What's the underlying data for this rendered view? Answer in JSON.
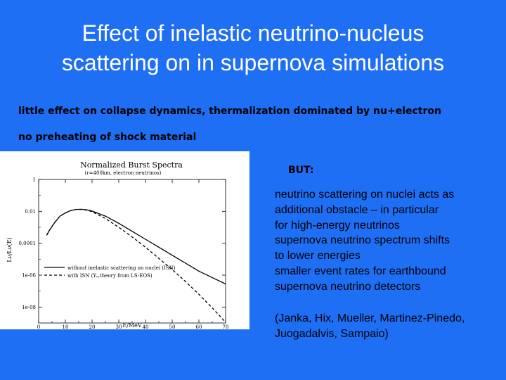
{
  "slide": {
    "title_lines": [
      "Effect of inelastic neutrino-nucleus",
      "scattering on in supernova simulations"
    ],
    "bullet1": "little effect on collapse dynamics, thermalization dominated by nu+electron",
    "bullet2": "no preheating of shock material",
    "but_label": "BUT:",
    "points": [
      "neutrino scattering on nuclei acts as",
      "additional obstacle – in particular",
      "for high-energy neutrinos",
      "supernova neutrino spectrum shifts",
      "to lower energies",
      "smaller event rates for earthbound",
      "supernova neutrino detectors"
    ],
    "refs": [
      "(Janka, Hix, Mueller, Martinez-Pinedo,",
      "Juogadalvis, Sampaio)"
    ],
    "background_color": "#1f6ff5"
  },
  "chart_data": {
    "type": "line",
    "title": "Normalized Burst Spectra",
    "subtitle": "(r=400km, electron neutrinos)",
    "xlabel": "E/MeV",
    "ylabel": "Lν/Lν(E)",
    "x_ticks": [
      0,
      10,
      20,
      30,
      40,
      50,
      60,
      70
    ],
    "y_ticks": [
      "1",
      "0.01",
      "0.0001",
      "1e-06",
      "1e-08"
    ],
    "xlim": [
      0,
      70
    ],
    "ylim_log10": [
      -9,
      0
    ],
    "y_scale": "log",
    "legend_position": "lower-left",
    "legend_labels": [
      "without inelastic scattering on nuclei (ISN)",
      "with ISN (Yₑ,theory from LS-EOS)"
    ],
    "series": [
      {
        "style": "solid",
        "x": [
          3,
          4,
          6,
          8,
          10,
          12,
          14,
          16,
          18,
          20,
          25,
          30,
          35,
          40,
          45,
          50,
          55,
          60,
          65,
          70
        ],
        "log10_y": [
          -3.5,
          -3.2,
          -2.7,
          -2.3,
          -2.1,
          -1.95,
          -1.88,
          -1.87,
          -1.9,
          -1.98,
          -2.3,
          -2.75,
          -3.25,
          -3.75,
          -4.25,
          -4.75,
          -5.25,
          -5.75,
          -6.15,
          -6.55
        ]
      },
      {
        "style": "dashed",
        "x": [
          3,
          4,
          6,
          8,
          10,
          12,
          14,
          16,
          18,
          20,
          25,
          30,
          35,
          40,
          45,
          50,
          55,
          60,
          65,
          70
        ],
        "log10_y": [
          -3.5,
          -3.2,
          -2.7,
          -2.3,
          -2.1,
          -1.95,
          -1.88,
          -1.88,
          -1.93,
          -2.02,
          -2.45,
          -3.0,
          -3.6,
          -4.25,
          -4.95,
          -5.65,
          -6.4,
          -7.2,
          -8.05,
          -8.95
        ]
      }
    ]
  }
}
